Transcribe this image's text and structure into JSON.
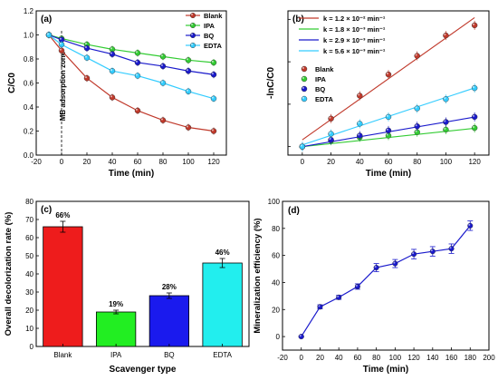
{
  "chart_data": [
    {
      "panel": "(a)",
      "type": "line",
      "xlabel": "Time (min)",
      "ylabel": "C/C0",
      "xlim": [
        -20,
        130
      ],
      "ylim": [
        0.0,
        1.2
      ],
      "xticks": [
        "-20",
        "0",
        "20",
        "40",
        "60",
        "80",
        "100",
        "120"
      ],
      "yticks": [
        "0.0",
        "0.2",
        "0.4",
        "0.6",
        "0.8",
        "1.0",
        "1.2"
      ],
      "annotation": "MB adsorption zone",
      "legend_position": "top-right",
      "x": [
        -10,
        0,
        20,
        40,
        60,
        80,
        100,
        120
      ],
      "series": [
        {
          "name": "Blank",
          "color": "#c0392b",
          "marker": "circle",
          "values": [
            1.0,
            0.87,
            0.64,
            0.48,
            0.37,
            0.29,
            0.23,
            0.2
          ]
        },
        {
          "name": "IPA",
          "color": "#33cc33",
          "marker": "circle",
          "values": [
            1.0,
            0.97,
            0.92,
            0.88,
            0.85,
            0.82,
            0.79,
            0.77
          ]
        },
        {
          "name": "BQ",
          "color": "#1a1acc",
          "marker": "circle",
          "values": [
            1.0,
            0.96,
            0.89,
            0.84,
            0.77,
            0.74,
            0.7,
            0.67
          ]
        },
        {
          "name": "EDTA",
          "color": "#33ccff",
          "marker": "circle",
          "values": [
            1.0,
            0.92,
            0.81,
            0.7,
            0.66,
            0.6,
            0.53,
            0.47
          ]
        }
      ]
    },
    {
      "panel": "(b)",
      "type": "scatter",
      "xlabel": "Time (min)",
      "ylabel": "-lnC/C0",
      "xlim": [
        -10,
        130
      ],
      "ylim": [
        -0.1,
        1.6
      ],
      "xticks": [
        "0",
        "20",
        "40",
        "60",
        "80",
        "100",
        "120"
      ],
      "yticks": [],
      "legend_position": "top-left",
      "fit_labels": [
        {
          "text": "k = 1.2 × 10⁻² min⁻¹",
          "color": "#c0392b"
        },
        {
          "text": "k = 1.8 × 10⁻³ min⁻¹",
          "color": "#33cc33"
        },
        {
          "text": "k = 2.9 × 10⁻³ min⁻¹",
          "color": "#1a1acc"
        },
        {
          "text": "k = 5.6 × 10⁻³ min⁻¹",
          "color": "#33ccff"
        }
      ],
      "x": [
        0,
        20,
        40,
        60,
        80,
        100,
        120
      ],
      "series": [
        {
          "name": "Blank",
          "color": "#c0392b",
          "values": [
            0.0,
            0.33,
            0.6,
            0.85,
            1.07,
            1.31,
            1.43
          ],
          "fit_slope": 0.012,
          "fit_intercept": 0.08
        },
        {
          "name": "IPA",
          "color": "#33cc33",
          "values": [
            0.0,
            0.07,
            0.11,
            0.13,
            0.17,
            0.2,
            0.22
          ],
          "fit_slope": 0.0018,
          "fit_intercept": 0.0
        },
        {
          "name": "BQ",
          "color": "#1a1acc",
          "values": [
            0.0,
            0.08,
            0.13,
            0.19,
            0.24,
            0.29,
            0.35
          ],
          "fit_slope": 0.0029,
          "fit_intercept": 0.0
        },
        {
          "name": "EDTA",
          "color": "#33ccff",
          "values": [
            0.0,
            0.15,
            0.27,
            0.35,
            0.45,
            0.56,
            0.69
          ],
          "fit_slope": 0.0056,
          "fit_intercept": 0.02
        }
      ]
    },
    {
      "panel": "(c)",
      "type": "bar",
      "xlabel": "Scavenger type",
      "ylabel": "Overall decolorization rate (%)",
      "ylim": [
        0,
        80
      ],
      "yticks": [
        "0",
        "10",
        "20",
        "30",
        "40",
        "50",
        "60",
        "70",
        "80"
      ],
      "categories": [
        "Blank",
        "IPA",
        "BQ",
        "EDTA"
      ],
      "values": [
        66,
        19,
        28,
        46
      ],
      "errors": [
        3,
        1,
        1.5,
        2.5
      ],
      "value_labels": [
        "66%",
        "19%",
        "28%",
        "46%"
      ],
      "colors": [
        "#ee1c1c",
        "#22ee22",
        "#1a1aee",
        "#22eeee"
      ]
    },
    {
      "panel": "(d)",
      "type": "line",
      "xlabel": "Time (min)",
      "ylabel": "Mineralization efficiency (%)",
      "xlim": [
        -20,
        200
      ],
      "ylim": [
        -10,
        100
      ],
      "xticks": [
        "-20",
        "0",
        "20",
        "40",
        "60",
        "80",
        "100",
        "120",
        "140",
        "160",
        "180",
        "200"
      ],
      "yticks": [
        "0",
        "20",
        "40",
        "60",
        "80",
        "100"
      ],
      "color": "#1a1acc",
      "x": [
        0,
        20,
        40,
        60,
        80,
        100,
        120,
        140,
        160,
        180
      ],
      "values": [
        0,
        22,
        29,
        37,
        51,
        54,
        61,
        63,
        65,
        82
      ],
      "errors": [
        0.5,
        1.5,
        1.5,
        2,
        3,
        3,
        3.5,
        3.5,
        3.5,
        3.5
      ]
    }
  ]
}
